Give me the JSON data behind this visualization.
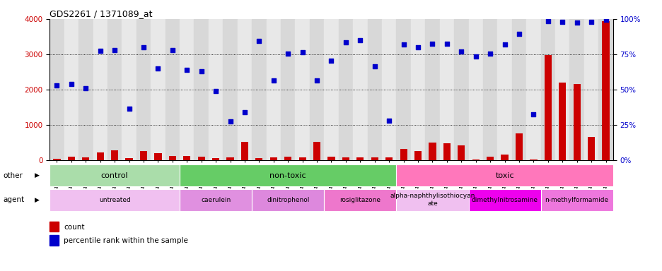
{
  "title": "GDS2261 / 1371089_at",
  "samples": [
    "GSM127079",
    "GSM127080",
    "GSM127081",
    "GSM127082",
    "GSM127083",
    "GSM127084",
    "GSM127085",
    "GSM127086",
    "GSM127087",
    "GSM127054",
    "GSM127055",
    "GSM127056",
    "GSM127057",
    "GSM127058",
    "GSM127064",
    "GSM127065",
    "GSM127066",
    "GSM127067",
    "GSM127068",
    "GSM127074",
    "GSM127075",
    "GSM127076",
    "GSM127077",
    "GSM127078",
    "GSM127049",
    "GSM127050",
    "GSM127051",
    "GSM127052",
    "GSM127053",
    "GSM127059",
    "GSM127060",
    "GSM127061",
    "GSM127062",
    "GSM127063",
    "GSM127069",
    "GSM127070",
    "GSM127071",
    "GSM127072",
    "GSM127073"
  ],
  "count": [
    35,
    95,
    65,
    220,
    270,
    60,
    255,
    200,
    115,
    105,
    95,
    50,
    80,
    510,
    50,
    75,
    90,
    75,
    505,
    95,
    65,
    80,
    80,
    70,
    310,
    250,
    490,
    465,
    415,
    20,
    95,
    145,
    760,
    15,
    2980,
    2200,
    2160,
    660,
    3940
  ],
  "percentile": [
    2120,
    2160,
    2040,
    3100,
    3110,
    1450,
    3200,
    2590,
    3110,
    2560,
    2510,
    1960,
    1100,
    1360,
    3380,
    2260,
    3020,
    3050,
    2260,
    2820,
    3340,
    3400,
    2660,
    1120,
    3270,
    3200,
    3290,
    3290,
    3080,
    2940,
    3020,
    3280,
    3580,
    1300,
    3940,
    3920,
    3900,
    3920,
    3970
  ],
  "groups_other": [
    {
      "label": "control",
      "start": 0,
      "end": 9,
      "color": "#aaddaa"
    },
    {
      "label": "non-toxic",
      "start": 9,
      "end": 24,
      "color": "#66cc66"
    },
    {
      "label": "toxic",
      "start": 24,
      "end": 39,
      "color": "#ff77bb"
    }
  ],
  "groups_agent": [
    {
      "label": "untreated",
      "start": 0,
      "end": 9,
      "color": "#f0c0f0"
    },
    {
      "label": "caerulein",
      "start": 9,
      "end": 14,
      "color": "#e090e0"
    },
    {
      "label": "dinitrophenol",
      "start": 14,
      "end": 19,
      "color": "#dd88dd"
    },
    {
      "label": "rosiglitazone",
      "start": 19,
      "end": 24,
      "color": "#ee77cc"
    },
    {
      "label": "alpha-naphthylisothiocyan\nate",
      "start": 24,
      "end": 29,
      "color": "#f0c0f0"
    },
    {
      "label": "dimethylnitrosamine",
      "start": 29,
      "end": 34,
      "color": "#ee00ee"
    },
    {
      "label": "n-methylformamide",
      "start": 34,
      "end": 39,
      "color": "#ee77dd"
    }
  ],
  "bar_color": "#CC0000",
  "scatter_color": "#0000CC",
  "ylim_left": [
    0,
    4000
  ],
  "ylim_right": [
    0,
    100
  ],
  "yticks_left": [
    0,
    1000,
    2000,
    3000,
    4000
  ],
  "yticks_right": [
    0,
    25,
    50,
    75,
    100
  ],
  "xtick_bg_colors": [
    "#d8d8d8",
    "#e8e8e8"
  ]
}
